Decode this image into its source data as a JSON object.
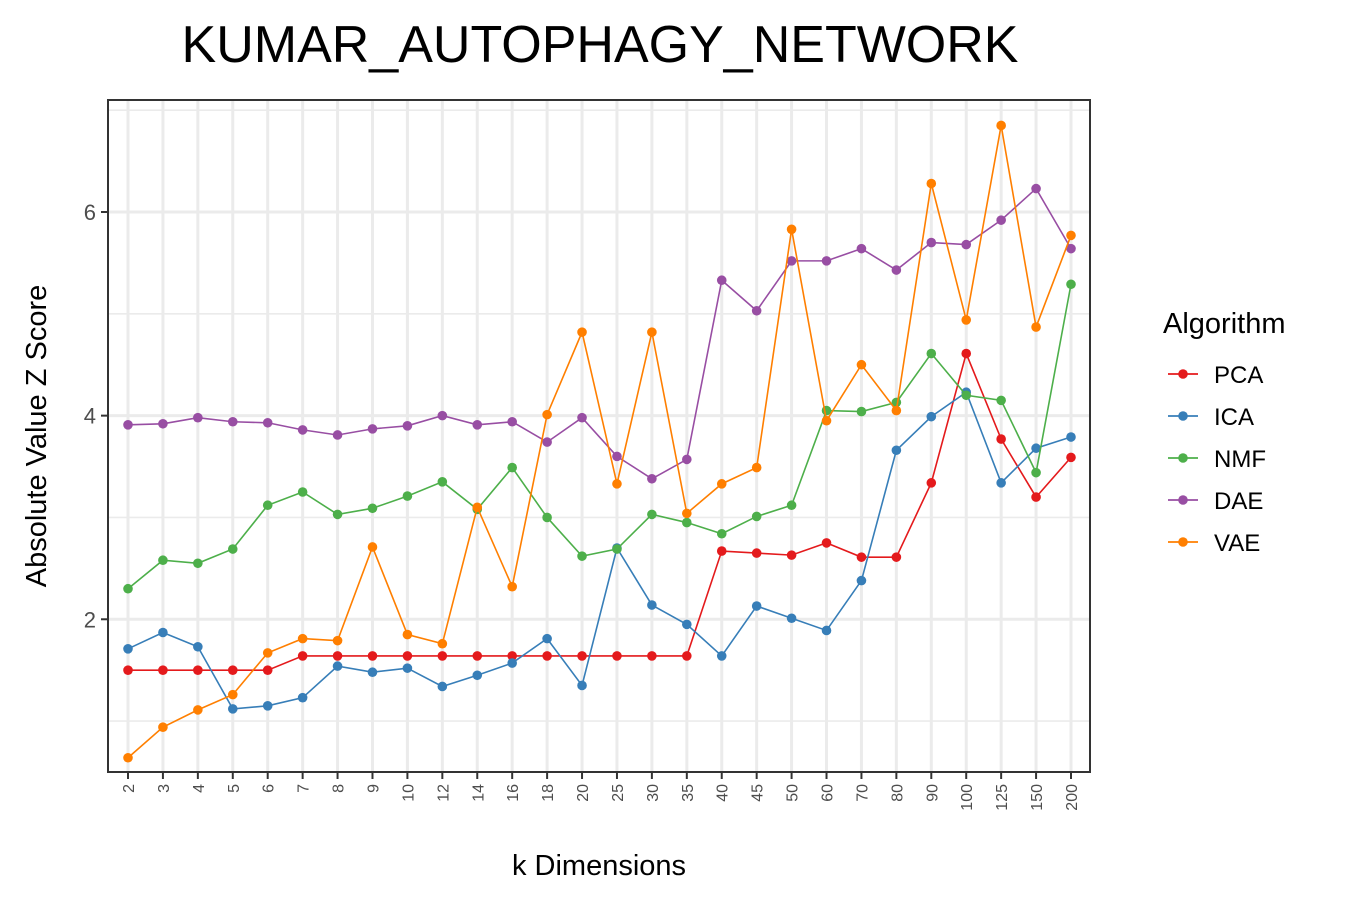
{
  "chart_data": {
    "type": "line",
    "title": "KUMAR_AUTOPHAGY_NETWORK",
    "xlabel": "k Dimensions",
    "ylabel": "Absolute Value Z Score",
    "categories": [
      "2",
      "3",
      "4",
      "5",
      "6",
      "7",
      "8",
      "9",
      "10",
      "12",
      "14",
      "16",
      "18",
      "20",
      "25",
      "30",
      "35",
      "40",
      "45",
      "50",
      "60",
      "70",
      "80",
      "90",
      "100",
      "125",
      "150",
      "200"
    ],
    "ylim": [
      0.5,
      7.1
    ],
    "yticks": [
      2,
      4,
      6
    ],
    "grid": true,
    "legend": {
      "title": "Algorithm",
      "placement": "right"
    },
    "series": [
      {
        "name": "PCA",
        "color": "#e41a1c",
        "values": [
          1.5,
          1.5,
          1.5,
          1.5,
          1.5,
          1.64,
          1.64,
          1.64,
          1.64,
          1.64,
          1.64,
          1.64,
          1.64,
          1.64,
          1.64,
          1.64,
          1.64,
          2.67,
          2.65,
          2.63,
          2.75,
          2.61,
          2.61,
          3.34,
          4.61,
          3.77,
          3.2,
          3.59
        ]
      },
      {
        "name": "ICA",
        "color": "#377eb8",
        "values": [
          1.71,
          1.87,
          1.73,
          1.12,
          1.15,
          1.23,
          1.54,
          1.48,
          1.52,
          1.34,
          1.45,
          1.57,
          1.81,
          1.35,
          2.7,
          2.14,
          1.95,
          1.64,
          2.13,
          2.01,
          1.89,
          2.38,
          3.66,
          3.99,
          4.23,
          3.34,
          3.68,
          3.79
        ]
      },
      {
        "name": "NMF",
        "color": "#4daf4a",
        "values": [
          2.3,
          2.58,
          2.55,
          2.69,
          3.12,
          3.25,
          3.03,
          3.09,
          3.21,
          3.35,
          3.08,
          3.49,
          3.0,
          2.62,
          2.69,
          3.03,
          2.95,
          2.84,
          3.01,
          3.12,
          4.05,
          4.04,
          4.13,
          4.61,
          4.2,
          4.15,
          3.44,
          5.29
        ]
      },
      {
        "name": "DAE",
        "color": "#984ea3",
        "values": [
          3.91,
          3.92,
          3.98,
          3.94,
          3.93,
          3.86,
          3.81,
          3.87,
          3.9,
          4.0,
          3.91,
          3.94,
          3.74,
          3.98,
          3.6,
          3.38,
          3.57,
          5.33,
          5.03,
          5.52,
          5.52,
          5.64,
          5.43,
          5.7,
          5.68,
          5.92,
          6.23,
          5.64
        ]
      },
      {
        "name": "VAE",
        "color": "#ff7f00",
        "values": [
          0.64,
          0.94,
          1.11,
          1.26,
          1.67,
          1.81,
          1.79,
          2.71,
          1.85,
          1.76,
          3.1,
          2.32,
          4.01,
          4.82,
          3.33,
          4.82,
          3.04,
          3.33,
          3.49,
          5.83,
          3.95,
          4.5,
          4.05,
          6.28,
          4.94,
          6.85,
          4.87,
          5.77
        ]
      }
    ]
  }
}
